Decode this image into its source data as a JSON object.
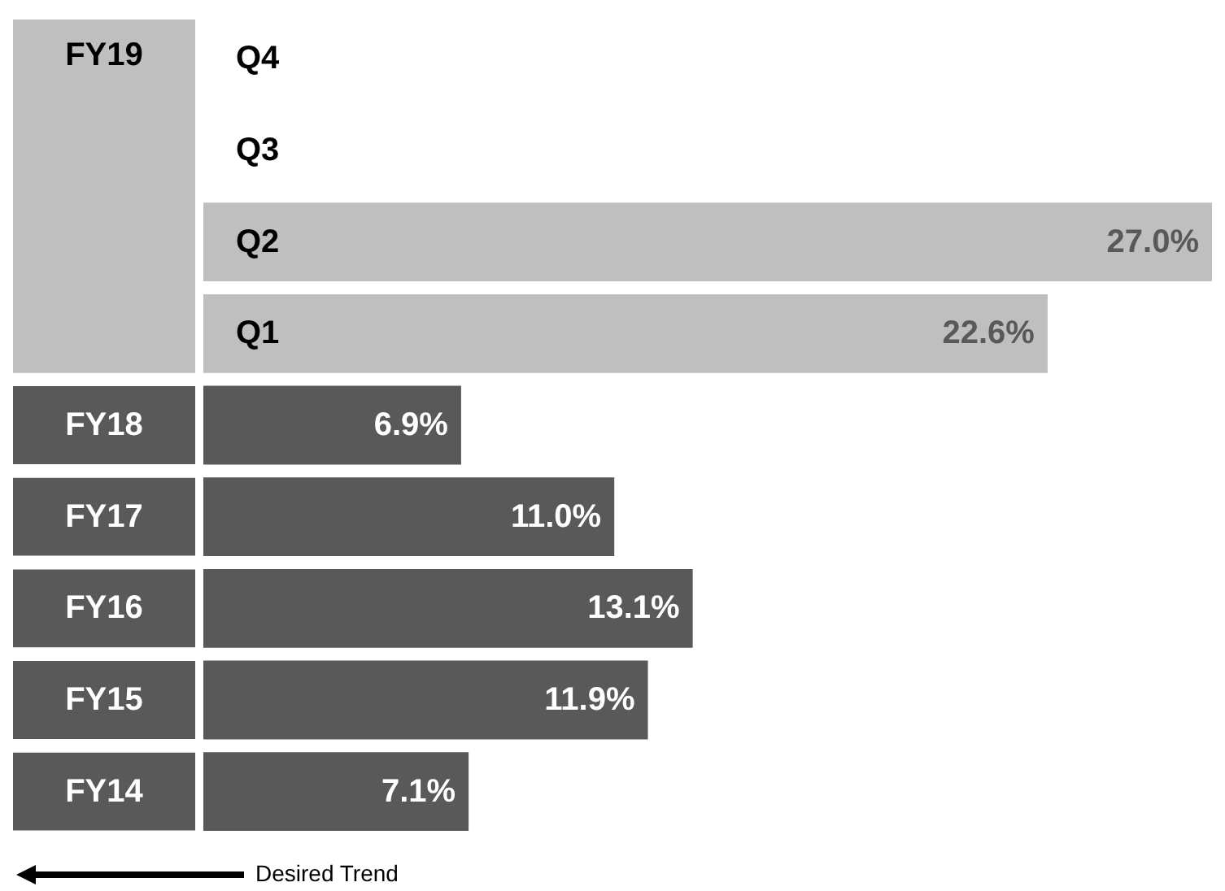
{
  "chart_data": {
    "type": "bar",
    "orientation": "horizontal",
    "categories": [
      "Q4",
      "Q3",
      "Q2",
      "Q1",
      "FY18",
      "FY17",
      "FY16",
      "FY15",
      "FY14"
    ],
    "values": [
      null,
      null,
      27.0,
      22.6,
      6.9,
      11.0,
      13.1,
      11.9,
      7.1
    ],
    "colors": [
      "#bfbfbf",
      "#bfbfbf",
      "#bfbfbf",
      "#bfbfbf",
      "#595959",
      "#595959",
      "#595959",
      "#595959",
      "#595959"
    ],
    "value_labels": [
      null,
      null,
      "27.0%",
      "22.6%",
      "6.9%",
      "11.0%",
      "13.1%",
      "11.9%",
      "7.1%"
    ],
    "annotations": [
      "FY19",
      "Desired Trend"
    ]
  }
}
